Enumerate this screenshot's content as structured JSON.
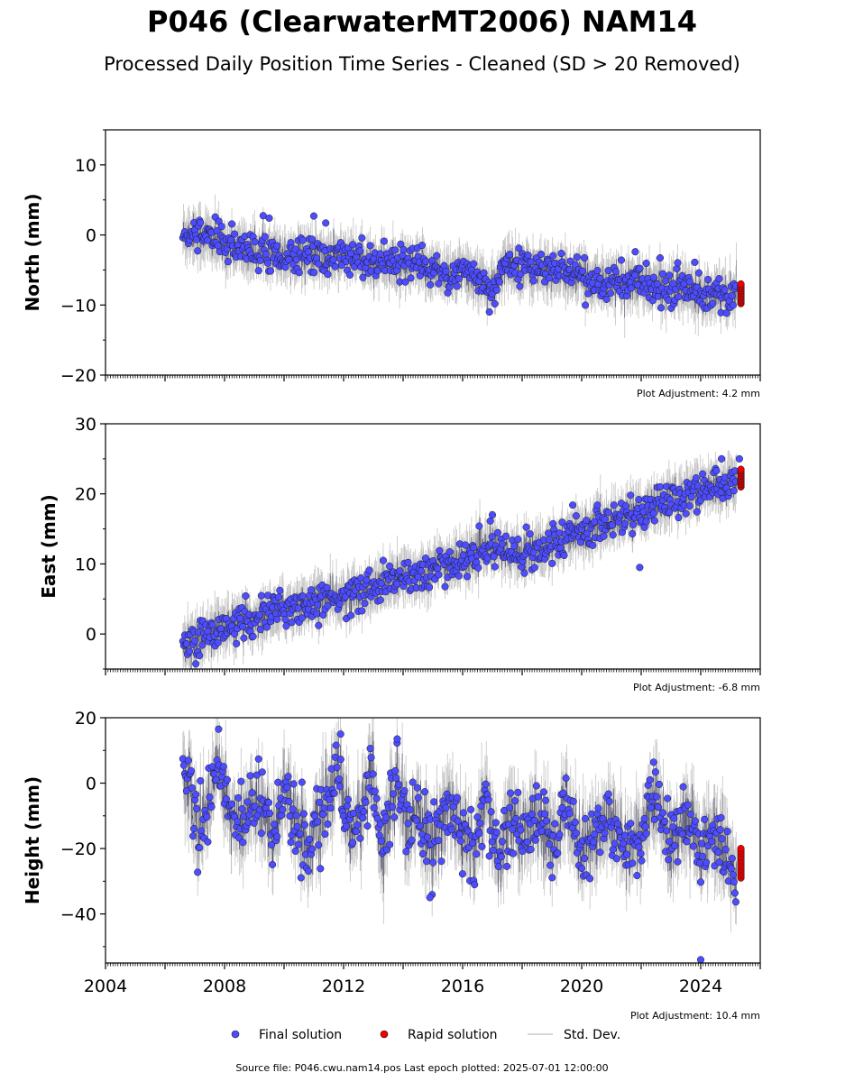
{
  "title": "P046 (ClearwaterMT2006) NAM14",
  "subtitle": "Processed Daily Position Time Series - Cleaned (SD > 20 Removed)",
  "legend": {
    "final": "Final solution",
    "rapid": "Rapid solution",
    "stddev": "Std. Dev."
  },
  "footer": "Source file: P046.cwu.nam14.pos  Last epoch plotted: 2025-07-01 12:00:00",
  "colors": {
    "final": "#4d4dff",
    "rapid": "#ee0000",
    "stddev": "#b0b0b0",
    "marker_edge": "#1a1a1a"
  },
  "chart_data": [
    {
      "type": "scatter",
      "name": "north",
      "ylabel": "North (mm)",
      "ylim": [
        -20,
        15
      ],
      "yticks": [
        "10",
        "0",
        "−10",
        "−20"
      ],
      "ytick_values": [
        10,
        0,
        -10,
        -20
      ],
      "xlim": [
        2004,
        2026
      ],
      "adjustment": "Plot Adjustment: 4.2 mm",
      "final_points": [
        [
          2006.6,
          0
        ],
        [
          2007.0,
          0.5
        ],
        [
          2007.5,
          -0.5
        ],
        [
          2008.0,
          -1.5
        ],
        [
          2008.5,
          -2
        ],
        [
          2009.0,
          -2.5
        ],
        [
          2009.5,
          -2
        ],
        [
          2010.0,
          -3
        ],
        [
          2010.5,
          -2.5
        ],
        [
          2011.0,
          -3
        ],
        [
          2011.5,
          -3.5
        ],
        [
          2012.0,
          -3
        ],
        [
          2012.5,
          -3.5
        ],
        [
          2013.0,
          -4
        ],
        [
          2013.5,
          -4
        ],
        [
          2014.0,
          -4.5
        ],
        [
          2014.5,
          -4.5
        ],
        [
          2015.0,
          -5
        ],
        [
          2015.5,
          -5.5
        ],
        [
          2016.0,
          -5.5
        ],
        [
          2016.5,
          -6
        ],
        [
          2017.0,
          -8
        ],
        [
          2017.5,
          -4
        ],
        [
          2018.0,
          -4.5
        ],
        [
          2018.5,
          -5
        ],
        [
          2019.0,
          -5
        ],
        [
          2019.5,
          -5.5
        ],
        [
          2020.0,
          -6
        ],
        [
          2020.5,
          -6.5
        ],
        [
          2021.0,
          -6.5
        ],
        [
          2021.5,
          -7
        ],
        [
          2022.0,
          -7
        ],
        [
          2022.5,
          -7.5
        ],
        [
          2023.0,
          -7.5
        ],
        [
          2023.5,
          -7.5
        ],
        [
          2024.0,
          -8
        ],
        [
          2024.5,
          -8
        ],
        [
          2025.0,
          -8.5
        ],
        [
          2025.2,
          -8
        ]
      ],
      "rapid_points": [
        [
          2025.35,
          -7
        ],
        [
          2025.35,
          -8
        ],
        [
          2025.35,
          -9
        ],
        [
          2025.35,
          -9.8
        ]
      ],
      "outliers": [
        [
          2011.0,
          2.7
        ],
        [
          2011.4,
          1.7
        ],
        [
          2009.5,
          2.4
        ],
        [
          2021.8,
          -2.4
        ],
        [
          2023.8,
          -3.9
        ],
        [
          2016.9,
          -11
        ]
      ]
    },
    {
      "type": "scatter",
      "name": "east",
      "ylabel": "East (mm)",
      "ylim": [
        -5,
        30
      ],
      "yticks": [
        "30",
        "20",
        "10",
        "0"
      ],
      "ytick_values": [
        30,
        20,
        10,
        0
      ],
      "xlim": [
        2004,
        2026
      ],
      "adjustment": "Plot Adjustment: -6.8 mm",
      "final_points": [
        [
          2006.6,
          -1
        ],
        [
          2007.0,
          -1.5
        ],
        [
          2007.5,
          0.5
        ],
        [
          2008.0,
          1
        ],
        [
          2008.5,
          1.5
        ],
        [
          2009.0,
          2
        ],
        [
          2009.5,
          3
        ],
        [
          2010.0,
          3.5
        ],
        [
          2010.5,
          4
        ],
        [
          2011.0,
          4.5
        ],
        [
          2011.5,
          5
        ],
        [
          2012.0,
          5
        ],
        [
          2012.5,
          6
        ],
        [
          2013.0,
          6.5
        ],
        [
          2013.5,
          7.5
        ],
        [
          2014.0,
          8
        ],
        [
          2014.5,
          8.5
        ],
        [
          2015.0,
          9.5
        ],
        [
          2015.5,
          10
        ],
        [
          2016.0,
          10.5
        ],
        [
          2016.5,
          11.5
        ],
        [
          2017.0,
          12.5
        ],
        [
          2017.5,
          11.5
        ],
        [
          2018.0,
          12
        ],
        [
          2018.5,
          12
        ],
        [
          2019.0,
          13
        ],
        [
          2019.5,
          14
        ],
        [
          2020.0,
          14.5
        ],
        [
          2020.5,
          15.5
        ],
        [
          2021.0,
          16
        ],
        [
          2021.5,
          17
        ],
        [
          2022.0,
          17.5
        ],
        [
          2022.5,
          18.5
        ],
        [
          2023.0,
          19
        ],
        [
          2023.5,
          20
        ],
        [
          2024.0,
          20.5
        ],
        [
          2024.5,
          21
        ],
        [
          2025.0,
          21.5
        ],
        [
          2025.2,
          22
        ]
      ],
      "rapid_points": [
        [
          2025.35,
          21
        ],
        [
          2025.35,
          22
        ],
        [
          2025.35,
          22.8
        ],
        [
          2025.35,
          23.5
        ]
      ],
      "outliers": [
        [
          2019.7,
          18.4
        ],
        [
          2021.95,
          9.5
        ],
        [
          2024.7,
          25
        ],
        [
          2025.3,
          25
        ],
        [
          2017.0,
          17
        ]
      ]
    },
    {
      "type": "scatter",
      "name": "height",
      "ylabel": "Height (mm)",
      "ylim": [
        -55,
        20
      ],
      "yticks": [
        "20",
        "0",
        "−20",
        "−40"
      ],
      "ytick_values": [
        20,
        0,
        -20,
        -40
      ],
      "xlim": [
        2004,
        2026
      ],
      "xticks": [
        "2004",
        "2008",
        "2012",
        "2016",
        "2020",
        "2024"
      ],
      "xtick_values": [
        2004,
        2008,
        2012,
        2016,
        2020,
        2024
      ],
      "adjustment": "Plot Adjustment: 10.4 mm",
      "final_points": [
        [
          2006.6,
          5
        ],
        [
          2006.9,
          -5
        ],
        [
          2007.2,
          -15
        ],
        [
          2007.6,
          0
        ],
        [
          2007.8,
          8
        ],
        [
          2008.2,
          -10
        ],
        [
          2008.6,
          -15
        ],
        [
          2008.9,
          -5
        ],
        [
          2009.3,
          -8
        ],
        [
          2009.7,
          -15
        ],
        [
          2010.0,
          0
        ],
        [
          2010.5,
          -12
        ],
        [
          2010.8,
          -20
        ],
        [
          2011.3,
          -10
        ],
        [
          2011.8,
          5
        ],
        [
          2012.2,
          -15
        ],
        [
          2012.6,
          -10
        ],
        [
          2012.9,
          5
        ],
        [
          2013.3,
          -20
        ],
        [
          2013.8,
          0
        ],
        [
          2014.2,
          -15
        ],
        [
          2014.6,
          -10
        ],
        [
          2015.0,
          -20
        ],
        [
          2015.5,
          -5
        ],
        [
          2015.9,
          -15
        ],
        [
          2016.4,
          -20
        ],
        [
          2016.8,
          -5
        ],
        [
          2017.2,
          -25
        ],
        [
          2017.6,
          -10
        ],
        [
          2018.0,
          -15
        ],
        [
          2018.5,
          -10
        ],
        [
          2019.0,
          -20
        ],
        [
          2019.5,
          -5
        ],
        [
          2020.0,
          -20
        ],
        [
          2020.5,
          -15
        ],
        [
          2021.0,
          -10
        ],
        [
          2021.5,
          -20
        ],
        [
          2022.0,
          -15
        ],
        [
          2022.5,
          -5
        ],
        [
          2023.0,
          -20
        ],
        [
          2023.5,
          -10
        ],
        [
          2024.0,
          -20
        ],
        [
          2024.5,
          -15
        ],
        [
          2025.0,
          -25
        ],
        [
          2025.2,
          -30
        ]
      ],
      "rapid_points": [
        [
          2025.35,
          -20
        ],
        [
          2025.35,
          -23
        ],
        [
          2025.35,
          -26
        ],
        [
          2025.35,
          -29
        ]
      ],
      "outliers": [
        [
          2007.8,
          16.5
        ],
        [
          2011.9,
          15
        ],
        [
          2013.8,
          13.5
        ],
        [
          2014.9,
          -35
        ],
        [
          2024.0,
          -54
        ]
      ]
    }
  ]
}
